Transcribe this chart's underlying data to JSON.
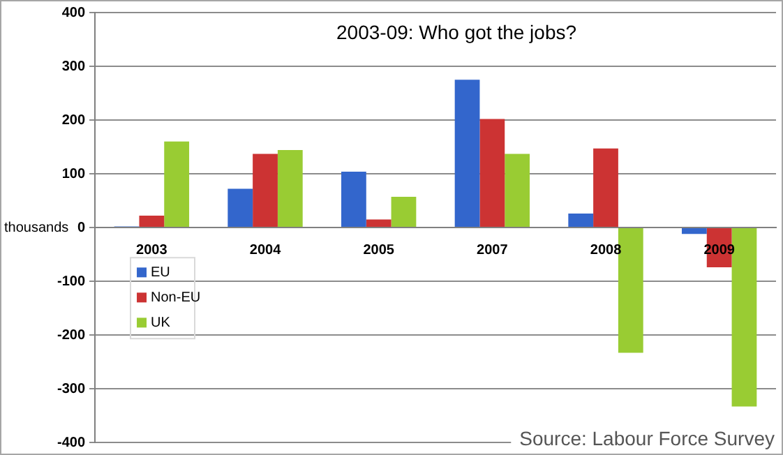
{
  "chart_data": {
    "type": "bar",
    "title": "2003-09: Who got the jobs?",
    "ylabel": "thousands",
    "categories": [
      "2003",
      "2004",
      "2005",
      "2007",
      "2008",
      "2009"
    ],
    "series": [
      {
        "name": "EU",
        "color": "#3366cc",
        "values": [
          2,
          72,
          104,
          275,
          26,
          -12
        ]
      },
      {
        "name": "Non-EU",
        "color": "#cc3333",
        "values": [
          22,
          137,
          15,
          202,
          147,
          -74
        ]
      },
      {
        "name": "UK",
        "color": "#99cc33",
        "values": [
          160,
          144,
          57,
          137,
          -233,
          -333
        ]
      }
    ],
    "ylim": [
      -400,
      400
    ],
    "yticks": [
      -400,
      -300,
      -200,
      -100,
      0,
      100,
      200,
      300,
      400
    ],
    "grid": "y",
    "legend": "left",
    "annotations": [
      "Source: Labour Force Survey"
    ]
  }
}
